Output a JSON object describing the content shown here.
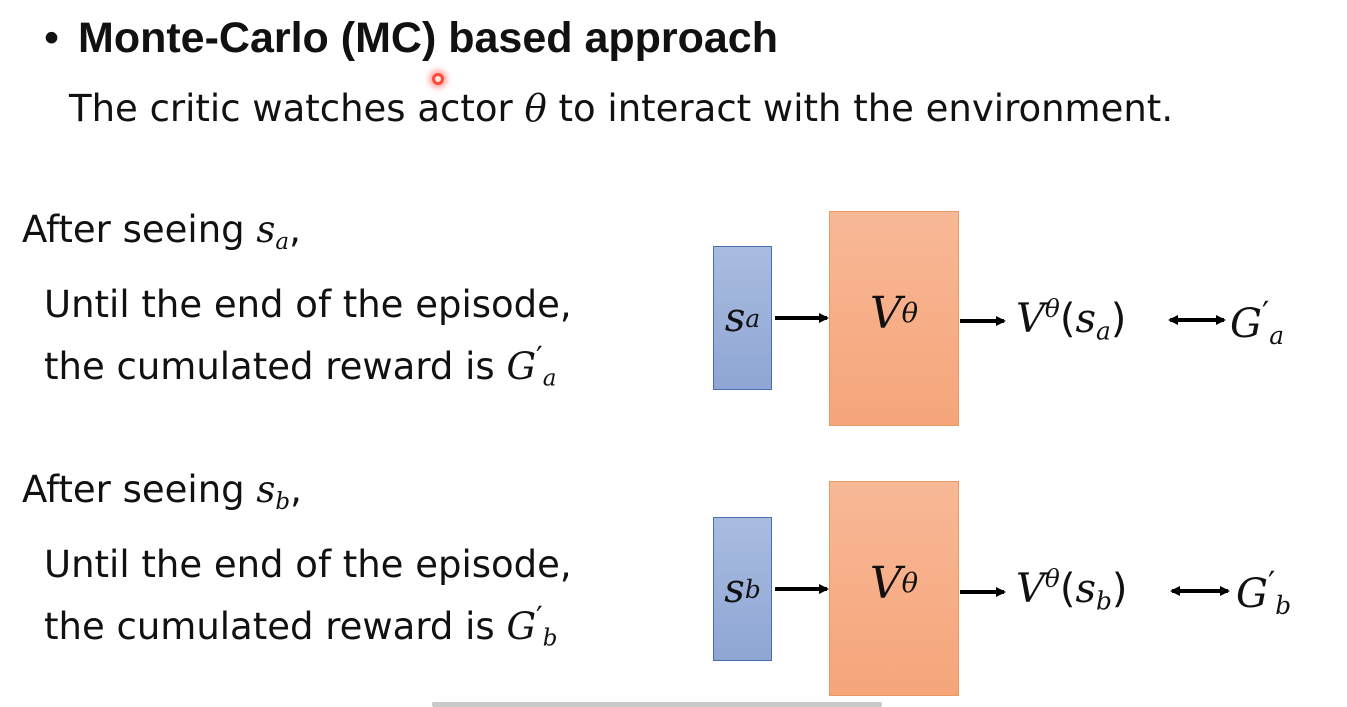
{
  "title": {
    "bullet": "•",
    "text": "Monte-Carlo (MC) based approach"
  },
  "subtitle": {
    "before": "The critic watches actor ",
    "theta": "θ",
    "after": " to interact with the environment."
  },
  "examples": [
    {
      "seeing_prefix": "After seeing ",
      "state": "s",
      "state_sub": "a",
      "comma": ",",
      "line1": "Until the end of the episode,",
      "line2": "the cumulated reward is ",
      "return": "G",
      "return_sub": "a",
      "prime": "′",
      "network": "V",
      "network_sup": "θ",
      "output": "V",
      "output_sup": "θ",
      "output_open": "(",
      "output_close": ")"
    },
    {
      "seeing_prefix": "After seeing ",
      "state": "s",
      "state_sub": "b",
      "comma": ",",
      "line1": "Until the end of the episode,",
      "line2": "the cumulated reward is ",
      "return": "G",
      "return_sub": "b",
      "prime": "′",
      "network": "V",
      "network_sup": "θ",
      "output": "V",
      "output_sup": "θ",
      "output_open": "(",
      "output_close": ")"
    }
  ],
  "colors": {
    "state_box": "#8fa6d4",
    "network_box": "#f6a57a",
    "arrow": "#000000",
    "cursor": "#ff4a3a"
  },
  "icons": {
    "cursor": "cursor-dot-icon",
    "arrow": "right-arrow-icon",
    "double_arrow": "double-arrow-icon"
  }
}
